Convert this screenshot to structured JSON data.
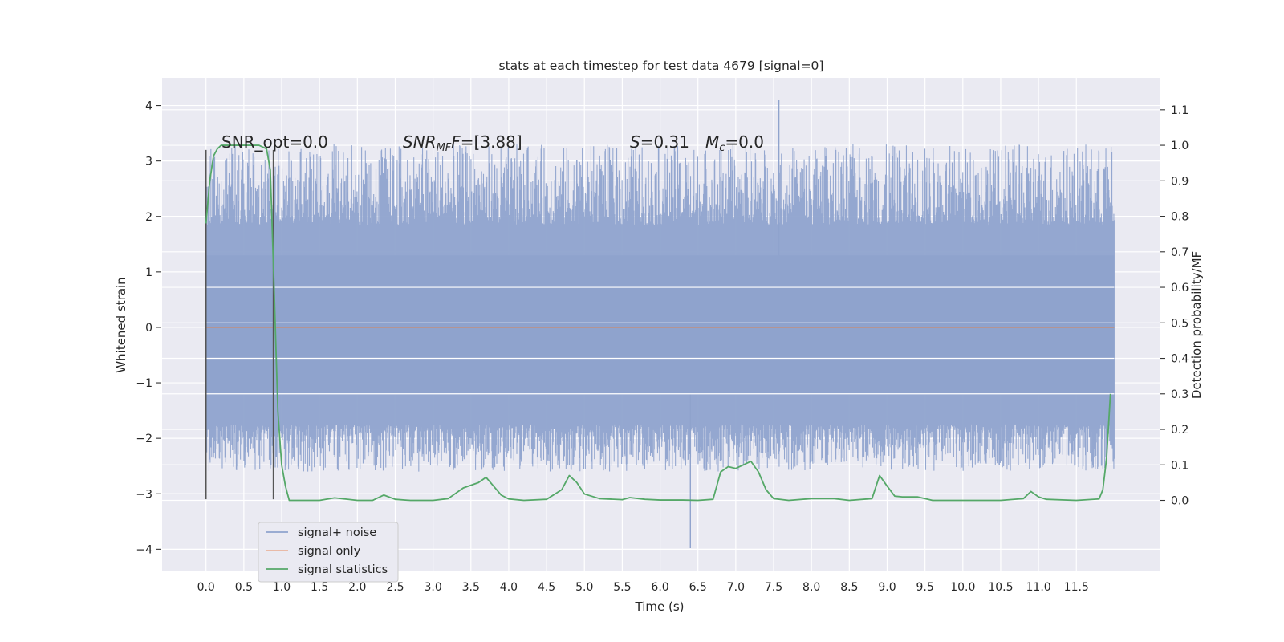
{
  "chart_data": {
    "type": "line",
    "title": "stats at each timestep for test data 4679 [signal=0]",
    "xlabel": "Time (s)",
    "ylabel": "Whitened strain",
    "ylabel_right": "Detection probability/MF",
    "xlim": [
      -0.58,
      12.6
    ],
    "ylim": [
      -4.4,
      4.5
    ],
    "ylim_right": [
      -0.2,
      1.19
    ],
    "x_ticks": [
      "0.0",
      "0.5",
      "1.0",
      "1.5",
      "2.0",
      "2.5",
      "3.0",
      "3.5",
      "4.0",
      "4.5",
      "5.0",
      "5.5",
      "6.0",
      "6.5",
      "7.0",
      "7.5",
      "8.0",
      "8.5",
      "9.0",
      "9.5",
      "10.0",
      "10.5",
      "11.0",
      "11.5"
    ],
    "y_ticks": [
      "4",
      "3",
      "2",
      "1",
      "0",
      "−1",
      "−2",
      "−3",
      "−4"
    ],
    "y_ticks_right": [
      "1.1",
      "1.0",
      "0.9",
      "0.8",
      "0.7",
      "0.6",
      "0.5",
      "0.4",
      "0.3",
      "0.2",
      "0.1",
      "0.0"
    ],
    "grid": true,
    "legend_position": "lower-left",
    "annotations": {
      "snr_opt": "SNR_opt=0.0",
      "snr_mf_main": "SNR",
      "snr_mf_sub": "MF",
      "snr_mf_value": "=[3.88]",
      "s_symbol": "S",
      "s_value": "=0.31",
      "mc_main": "M",
      "mc_sub": "c",
      "mc_value": "=0.0"
    },
    "vertical_markers_x": [
      0.0,
      0.89
    ],
    "series": [
      {
        "name": "signal+ noise",
        "color": "#8fa3cd",
        "envelope": {
          "dense_band": [
            -1.2,
            1.3
          ],
          "typical_peak_range": [
            -2.6,
            3.3
          ],
          "max_peak": {
            "x": 7.57,
            "y": 4.1
          },
          "min_peak": {
            "x": 6.4,
            "y": -3.98
          }
        }
      },
      {
        "name": "signal only",
        "color": "#dd8452",
        "x": [
          0.0,
          12.0
        ],
        "y": [
          0.0,
          0.0
        ]
      },
      {
        "name": "signal statistics",
        "color": "#55a868",
        "axis": "right",
        "x": [
          0.0,
          0.05,
          0.1,
          0.15,
          0.2,
          0.3,
          0.4,
          0.5,
          0.6,
          0.7,
          0.8,
          0.85,
          0.9,
          0.95,
          1.0,
          1.05,
          1.1,
          1.2,
          1.5,
          1.7,
          2.0,
          2.2,
          2.35,
          2.5,
          2.7,
          3.0,
          3.2,
          3.4,
          3.6,
          3.7,
          3.8,
          3.9,
          4.0,
          4.2,
          4.5,
          4.7,
          4.8,
          4.9,
          5.0,
          5.2,
          5.5,
          5.6,
          5.8,
          6.0,
          6.3,
          6.5,
          6.7,
          6.8,
          6.9,
          7.0,
          7.1,
          7.2,
          7.3,
          7.4,
          7.5,
          7.7,
          8.0,
          8.3,
          8.5,
          8.8,
          8.9,
          9.0,
          9.1,
          9.2,
          9.4,
          9.6,
          10.0,
          10.5,
          10.8,
          10.9,
          11.0,
          11.1,
          11.5,
          11.8,
          11.85,
          11.9,
          11.95
        ],
        "y": [
          0.78,
          0.9,
          0.97,
          0.99,
          1.0,
          1.0,
          1.0,
          1.0,
          1.0,
          1.0,
          0.99,
          0.93,
          0.6,
          0.25,
          0.1,
          0.04,
          0.0,
          0.0,
          0.0,
          0.007,
          0.0,
          0.0,
          0.015,
          0.003,
          0.0,
          0.0,
          0.005,
          0.035,
          0.05,
          0.065,
          0.04,
          0.015,
          0.004,
          0.0,
          0.003,
          0.03,
          0.07,
          0.05,
          0.018,
          0.005,
          0.002,
          0.008,
          0.003,
          0.001,
          0.001,
          0.0,
          0.003,
          0.08,
          0.095,
          0.09,
          0.1,
          0.11,
          0.08,
          0.03,
          0.005,
          0.0,
          0.005,
          0.005,
          0.0,
          0.005,
          0.07,
          0.04,
          0.012,
          0.01,
          0.01,
          0.0,
          0.0,
          0.0,
          0.005,
          0.025,
          0.01,
          0.003,
          0.0,
          0.004,
          0.03,
          0.12,
          0.3
        ]
      }
    ]
  },
  "legend": {
    "items": [
      "signal+ noise",
      "signal only",
      "signal statistics"
    ]
  }
}
